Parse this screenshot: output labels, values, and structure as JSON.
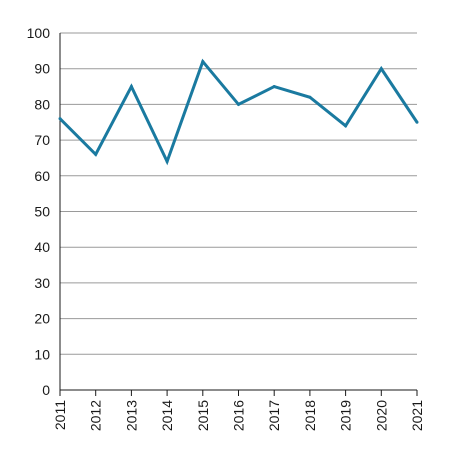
{
  "chart_data": {
    "type": "line",
    "title": "",
    "xlabel": "",
    "ylabel": "",
    "x": [
      "2011",
      "2012",
      "2013",
      "2014",
      "2015",
      "2016",
      "2017",
      "2018",
      "2019",
      "2020",
      "2021"
    ],
    "series": [
      {
        "values": [
          76,
          66,
          85,
          64,
          92,
          80,
          85,
          82,
          74,
          90,
          75
        ],
        "color": "#1a7aa0"
      }
    ],
    "ylim": [
      0,
      100
    ],
    "yticks": [
      0,
      10,
      20,
      30,
      40,
      50,
      60,
      70,
      80,
      90,
      100
    ],
    "grid": true,
    "grid_color": "#9a9a9a",
    "x_tick_rotation": "vertical",
    "legend": "none"
  }
}
